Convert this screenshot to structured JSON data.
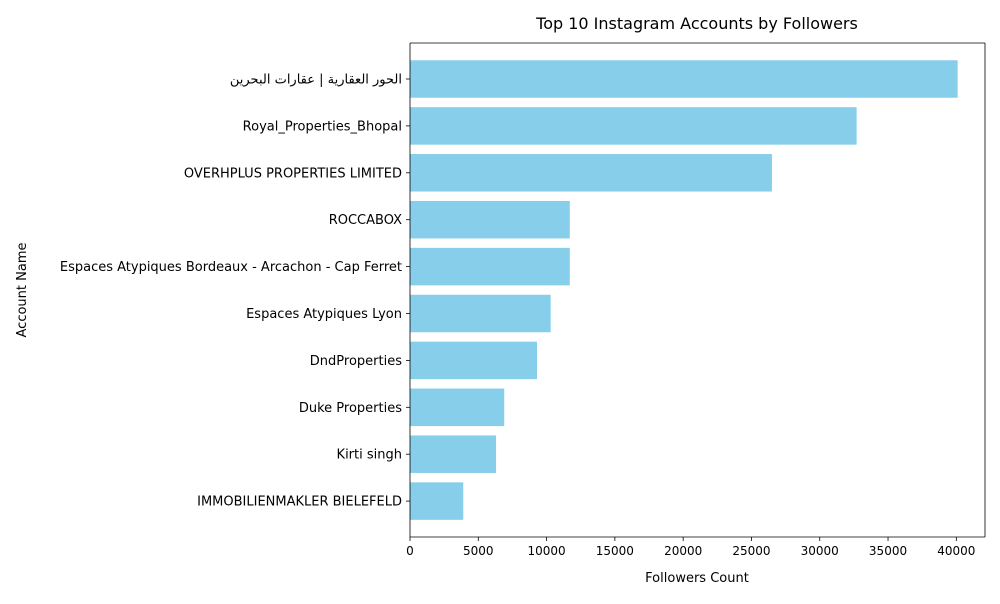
{
  "chart_data": {
    "type": "bar",
    "orientation": "horizontal",
    "title": "Top 10 Instagram Accounts by Followers",
    "xlabel": "Followers Count",
    "ylabel": "Account Name",
    "xlim": [
      0,
      42100
    ],
    "xticks": [
      0,
      5000,
      10000,
      15000,
      20000,
      25000,
      30000,
      35000,
      40000
    ],
    "bar_color": "#87CEEB",
    "grid": false,
    "categories": [
      "الحور العقارية | عقارات البحرين",
      "Royal_Properties_Bhopal",
      "OVERHPLUS PROPERTIES LIMITED",
      "ROCCABOX",
      "Espaces Atypiques Bordeaux - Arcachon - Cap Ferret",
      "Espaces Atypiques Lyon",
      "DndProperties",
      "Duke Properties",
      "Kirti singh",
      "IMMOBILIENMAKLER BIELEFELD"
    ],
    "values": [
      40100,
      32700,
      26500,
      11700,
      11700,
      10300,
      9300,
      6900,
      6300,
      3900
    ]
  }
}
